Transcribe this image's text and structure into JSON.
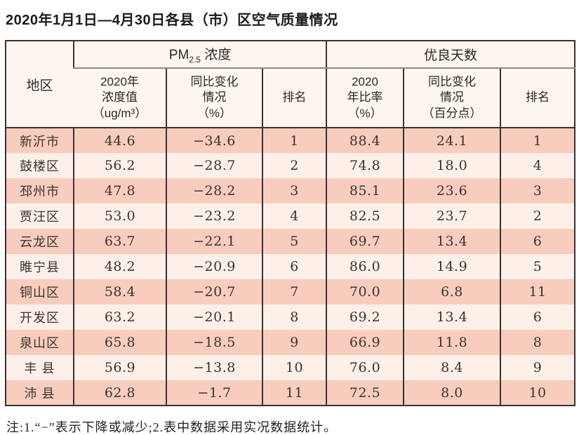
{
  "page": {
    "title": "2020年1月1日—4月30日各县（市）区空气质量情况",
    "note": "注:1.“−”表示下降或减少;2.表中数据采用实况数据统计。"
  },
  "colors": {
    "row_odd_bg": "#f8cdbd",
    "row_even_bg": "#fdf0e9",
    "header_bg": "#fdf6f0",
    "border_dark": "#3a3230",
    "border_gray": "#8f8780"
  },
  "chart_data": {
    "type": "table",
    "title": "2020年1月1日—4月30日各县（市）区空气质量情况",
    "note": "注:1.“−”表示下降或减少;2.表中数据采用实况数据统计。",
    "header": {
      "region": "地区",
      "pm_group_prefix": "PM",
      "pm_group_sub": "2.5",
      "pm_group_suffix": " 浓度",
      "good_group": "优良天数",
      "pm_value": "2020年\n浓度值\n（ug/m³）",
      "pm_change": "同比变化\n情况\n（%）",
      "pm_rank": "排名",
      "good_ratio": "2020\n年比率\n（%）",
      "good_change": "同比变化\n情况\n（百分点）",
      "good_rank": "排名"
    },
    "rows": [
      [
        "新沂市",
        "44.6",
        "−34.6",
        "1",
        "88.4",
        "24.1",
        "1"
      ],
      [
        "鼓楼区",
        "56.2",
        "−28.7",
        "2",
        "74.8",
        "18.0",
        "4"
      ],
      [
        "邳州市",
        "47.8",
        "−28.2",
        "3",
        "85.1",
        "23.6",
        "3"
      ],
      [
        "贾汪区",
        "53.0",
        "−23.2",
        "4",
        "82.5",
        "23.7",
        "2"
      ],
      [
        "云龙区",
        "63.7",
        "−22.1",
        "5",
        "69.7",
        "13.4",
        "6"
      ],
      [
        "睢宁县",
        "48.2",
        "−20.9",
        "6",
        "86.0",
        "14.9",
        "5"
      ],
      [
        "铜山区",
        "58.4",
        "−20.7",
        "7",
        "70.0",
        "6.8",
        "11"
      ],
      [
        "开发区",
        "63.2",
        "−20.1",
        "8",
        "69.2",
        "13.4",
        "6"
      ],
      [
        "泉山区",
        "65.8",
        "−18.5",
        "9",
        "66.9",
        "11.8",
        "8"
      ],
      [
        "丰 县",
        "56.9",
        "−13.8",
        "10",
        "76.0",
        "8.4",
        "9"
      ],
      [
        "沛 县",
        "62.8",
        "−1.7",
        "11",
        "72.5",
        "8.0",
        "10"
      ]
    ]
  }
}
